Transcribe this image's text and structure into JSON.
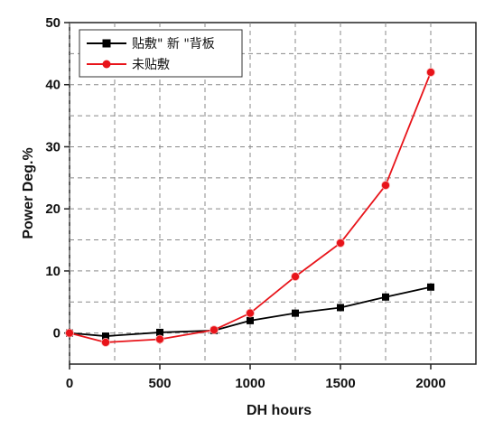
{
  "chart_data": {
    "type": "line",
    "xlabel": "DH hours",
    "ylabel": "Power Deg.%",
    "xlim": [
      0,
      2250
    ],
    "ylim": [
      -5,
      50
    ],
    "xticks": [
      0,
      500,
      1000,
      1500,
      2000
    ],
    "yticks": [
      0,
      10,
      20,
      30,
      40,
      50
    ],
    "grid": true,
    "legend_position": "top-left",
    "series": [
      {
        "name": "贴敷\" 新 \"背板",
        "color": "#000000",
        "marker": "square",
        "x": [
          0,
          200,
          500,
          800,
          1000,
          1250,
          1500,
          1750,
          2000
        ],
        "y": [
          0,
          -0.5,
          0.1,
          0.4,
          2.0,
          3.2,
          4.1,
          5.8,
          7.4
        ]
      },
      {
        "name": "未贴敷",
        "color": "#e8141a",
        "marker": "circle",
        "x": [
          0,
          200,
          500,
          800,
          1000,
          1250,
          1500,
          1750,
          2000
        ],
        "y": [
          0,
          -1.5,
          -1.0,
          0.5,
          3.2,
          9.1,
          14.5,
          23.8,
          42.0
        ]
      }
    ]
  }
}
